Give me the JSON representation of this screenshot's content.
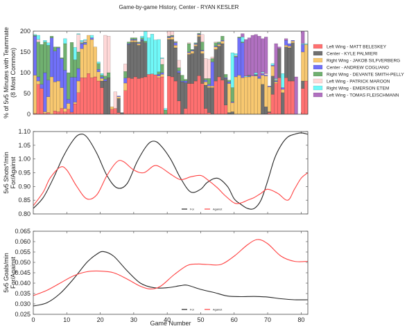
{
  "title": "Game-by-game History, Center - RYAN KESLER",
  "chart_data": [
    {
      "type": "bar",
      "stacked": true,
      "title": "",
      "xlabel": "",
      "ylabel": "% of 5v5 Minutes with Teammate\n(8 Most Common)",
      "ylim": [
        0,
        200
      ],
      "yticks": [
        "0",
        "50",
        "100",
        "150",
        "200"
      ],
      "xlim": [
        0,
        82
      ],
      "legend_position": "right",
      "x": [
        1,
        2,
        3,
        4,
        5,
        6,
        7,
        8,
        9,
        10,
        11,
        12,
        13,
        14,
        15,
        16,
        17,
        18,
        19,
        20,
        21,
        22,
        23,
        24,
        25,
        26,
        27,
        28,
        29,
        30,
        31,
        32,
        33,
        34,
        35,
        36,
        37,
        38,
        39,
        40,
        41,
        42,
        43,
        44,
        45,
        46,
        47,
        48,
        49,
        50,
        51,
        52,
        53,
        54,
        55,
        56,
        57,
        58,
        59,
        60,
        61,
        62,
        63,
        64,
        65,
        66,
        67,
        68,
        69,
        70,
        71,
        72,
        73,
        74,
        75,
        76,
        77,
        78,
        79,
        80,
        81,
        82
      ],
      "series": [
        {
          "name": "Left Wing - MATT BELESKEY",
          "color": "#ff7070",
          "values": [
            2,
            72,
            62,
            2,
            4,
            0,
            8,
            6,
            14,
            6,
            12,
            5,
            25,
            52,
            88,
            88,
            98,
            88,
            90,
            80,
            64,
            0,
            0,
            12,
            14,
            4,
            0,
            57,
            88,
            86,
            90,
            86,
            88,
            90,
            96,
            97,
            95,
            88,
            90,
            0,
            92,
            90,
            80,
            32,
            0,
            14,
            74,
            74,
            80,
            93,
            74,
            14,
            4,
            0,
            80,
            90,
            82,
            22,
            0,
            0,
            0,
            0,
            0,
            0,
            0,
            0,
            0,
            0,
            0,
            0,
            4,
            48,
            74,
            88,
            0,
            88,
            80,
            80,
            0,
            0,
            62,
            80
          ]
        },
        {
          "name": "Center - KYLE PALMIERI",
          "color": "#707070",
          "values": [
            0,
            0,
            0,
            0,
            0,
            0,
            0,
            0,
            0,
            0,
            0,
            0,
            0,
            0,
            0,
            0,
            0,
            0,
            0,
            0,
            16,
            80,
            88,
            0,
            0,
            34,
            4,
            0,
            80,
            88,
            84,
            80,
            90,
            82,
            0,
            0,
            0,
            0,
            0,
            0,
            88,
            90,
            80,
            68,
            78,
            62,
            70,
            72,
            84,
            94,
            72,
            56,
            60,
            64,
            76,
            74,
            88,
            64,
            4,
            6,
            0,
            0,
            0,
            0,
            0,
            0,
            0,
            0,
            72,
            18,
            2,
            44,
            0,
            70,
            52,
            74,
            80,
            92,
            0,
            0,
            18,
            0
          ]
        },
        {
          "name": "Right Wing - JAKOB SILFVERBERG",
          "color": "#f8c870",
          "values": [
            92,
            8,
            0,
            4,
            38,
            90,
            70,
            74,
            50,
            8,
            14,
            0,
            4,
            28,
            70,
            80,
            92,
            92,
            72,
            22,
            6,
            0,
            0,
            6,
            0,
            4,
            0,
            18,
            0,
            4,
            4,
            4,
            0,
            0,
            0,
            0,
            0,
            4,
            6,
            0,
            4,
            6,
            6,
            0,
            0,
            0,
            4,
            6,
            4,
            4,
            6,
            8,
            4,
            4,
            6,
            4,
            6,
            0,
            70,
            22,
            90,
            94,
            88,
            90,
            90,
            92,
            92,
            86,
            22,
            74,
            60,
            24,
            4,
            0,
            8,
            4,
            4,
            4,
            0,
            0,
            70,
            88
          ]
        },
        {
          "name": "Center - ANDREW COGLIANO",
          "color": "#7070f8",
          "values": [
            94,
            10,
            10,
            94,
            40,
            94,
            74,
            80,
            70,
            92,
            10,
            84,
            60,
            30,
            12,
            4,
            0,
            4,
            0,
            6,
            4,
            4,
            0,
            0,
            0,
            2,
            0,
            12,
            2,
            2,
            2,
            2,
            2,
            0,
            0,
            0,
            0,
            4,
            4,
            0,
            2,
            2,
            6,
            4,
            2,
            4,
            2,
            2,
            2,
            2,
            2,
            4,
            4,
            58,
            2,
            2,
            2,
            2,
            4,
            2,
            48,
            90,
            84,
            0,
            2,
            0,
            2,
            4,
            4,
            2,
            2,
            2,
            2,
            0,
            4,
            12,
            6,
            2,
            0,
            0,
            18,
            0
          ]
        },
        {
          "name": "Right Wing - DEVANTE SMITH-PELLY",
          "color": "#70b070",
          "values": [
            2,
            84,
            96,
            74,
            84,
            4,
            10,
            2,
            2,
            64,
            64,
            84,
            42,
            40,
            2,
            2,
            0,
            0,
            0,
            14,
            4,
            8,
            12,
            0,
            0,
            0,
            0,
            16,
            4,
            4,
            4,
            2,
            4,
            4,
            0,
            0,
            0,
            6,
            20,
            10,
            2,
            2,
            2,
            8,
            14,
            4,
            20,
            2,
            2,
            2,
            20,
            4,
            14,
            8,
            8,
            4,
            10,
            8,
            4,
            34,
            2,
            2,
            2,
            0,
            2,
            0,
            2,
            0,
            0,
            0,
            0,
            0,
            2,
            0,
            0,
            0,
            0,
            0,
            0,
            0,
            0,
            0
          ]
        },
        {
          "name": "Left Wing - PATRICK MAROON",
          "color": "#ffd8d8",
          "values": [
            0,
            6,
            0,
            0,
            0,
            0,
            0,
            0,
            0,
            0,
            0,
            0,
            0,
            42,
            2,
            4,
            0,
            0,
            0,
            0,
            0,
            98,
            88,
            0,
            40,
            0,
            0,
            18,
            0,
            0,
            0,
            0,
            0,
            0,
            0,
            0,
            0,
            0,
            14,
            0,
            12,
            10,
            2,
            18,
            0,
            0,
            2,
            0,
            0,
            0,
            18,
            48,
            46,
            4,
            2,
            0,
            0,
            0,
            0,
            0,
            2,
            0,
            0,
            0,
            0,
            0,
            0,
            0,
            2,
            4,
            0,
            0,
            2,
            0,
            0,
            0,
            0,
            0,
            0,
            0,
            0,
            0
          ]
        },
        {
          "name": "Right Wing - EMERSON ETEM",
          "color": "#70f8f8",
          "values": [
            2,
            10,
            0,
            4,
            6,
            0,
            0,
            0,
            0,
            12,
            0,
            0,
            30,
            2,
            4,
            2,
            0,
            6,
            0,
            4,
            4,
            0,
            0,
            0,
            0,
            0,
            0,
            0,
            0,
            0,
            0,
            0,
            4,
            84,
            88,
            96,
            84,
            78,
            2,
            4,
            0,
            0,
            0,
            0,
            0,
            0,
            0,
            0,
            0,
            0,
            0,
            0,
            0,
            0,
            0,
            0,
            0,
            0,
            0,
            84,
            4,
            0,
            12,
            2,
            0,
            0,
            4,
            0,
            2,
            0,
            0,
            4,
            2,
            0,
            34,
            0,
            0,
            0,
            0,
            0,
            2,
            2
          ]
        },
        {
          "name": "Left Wing - TOMAS FLEISCHMANN",
          "color": "#b070c0",
          "values": [
            0,
            0,
            0,
            0,
            0,
            0,
            0,
            0,
            0,
            0,
            0,
            0,
            0,
            0,
            0,
            0,
            0,
            0,
            0,
            0,
            0,
            0,
            0,
            0,
            0,
            0,
            0,
            0,
            0,
            0,
            0,
            0,
            0,
            0,
            0,
            0,
            0,
            0,
            0,
            0,
            0,
            0,
            0,
            0,
            0,
            0,
            0,
            0,
            0,
            0,
            0,
            0,
            0,
            0,
            0,
            0,
            0,
            0,
            0,
            0,
            0,
            0,
            8,
            88,
            90,
            98,
            92,
            98,
            80,
            88,
            0,
            0,
            84,
            4,
            0,
            4,
            0,
            0,
            90,
            0,
            66,
            0
          ]
        }
      ]
    },
    {
      "type": "line",
      "title": "",
      "xlabel": "",
      "ylabel": "5v5 Shots*/min\nFor/Against",
      "ylim": [
        0.8,
        1.1
      ],
      "yticks": [
        "0.80",
        "0.85",
        "0.90",
        "0.95",
        "1.00",
        "1.05",
        "1.10"
      ],
      "xlim": [
        0,
        82
      ],
      "legend_position": "lower-center-right",
      "series": [
        {
          "name": "For",
          "color": "#222222",
          "x": [
            0,
            3,
            6,
            9,
            12,
            14,
            16,
            19,
            22,
            25,
            28,
            31,
            34,
            36,
            38,
            41,
            44,
            47,
            50,
            52,
            55,
            58,
            60,
            62,
            64,
            66,
            68,
            70,
            72,
            74,
            76,
            78,
            80,
            82
          ],
          "y": [
            0.82,
            0.86,
            0.93,
            1.01,
            1.07,
            1.09,
            1.08,
            1.02,
            0.94,
            0.895,
            0.91,
            0.99,
            1.05,
            1.065,
            1.05,
            1.0,
            0.93,
            0.88,
            0.89,
            0.915,
            0.93,
            0.9,
            0.855,
            0.835,
            0.82,
            0.82,
            0.85,
            0.92,
            1.0,
            1.05,
            1.08,
            1.09,
            1.095,
            1.09
          ]
        },
        {
          "name": "Against",
          "color": "#ff4040",
          "x": [
            0,
            3,
            5,
            8,
            10,
            13,
            16,
            19,
            22,
            25,
            27,
            30,
            33,
            36,
            38,
            41,
            44,
            47,
            50,
            52,
            55,
            57,
            60,
            62,
            64,
            66,
            68,
            70,
            73,
            76,
            78,
            80,
            82
          ],
          "y": [
            0.83,
            0.88,
            0.93,
            0.97,
            0.96,
            0.9,
            0.855,
            0.87,
            0.94,
            0.99,
            0.99,
            0.96,
            0.95,
            0.975,
            0.97,
            0.945,
            0.925,
            0.935,
            0.94,
            0.925,
            0.895,
            0.87,
            0.84,
            0.84,
            0.85,
            0.86,
            0.875,
            0.89,
            0.875,
            0.85,
            0.89,
            0.93,
            0.95
          ]
        }
      ]
    },
    {
      "type": "line",
      "title": "",
      "xlabel": "Game Number",
      "ylabel": "5v5 Goals/min\nFor/Against",
      "ylim": [
        0.025,
        0.065
      ],
      "yticks": [
        "0.025",
        "0.030",
        "0.035",
        "0.040",
        "0.045",
        "0.050",
        "0.055",
        "0.060",
        "0.065"
      ],
      "xticks": [
        "0",
        "10",
        "20",
        "30",
        "40",
        "50",
        "60",
        "70",
        "80"
      ],
      "xlim": [
        0,
        82
      ],
      "legend_position": "lower-center-right",
      "series": [
        {
          "name": "For",
          "color": "#222222",
          "x": [
            0,
            4,
            8,
            12,
            16,
            19,
            21,
            24,
            28,
            32,
            36,
            40,
            44,
            46,
            50,
            54,
            58,
            62,
            66,
            70,
            74,
            78,
            82
          ],
          "y": [
            0.029,
            0.0305,
            0.035,
            0.042,
            0.05,
            0.054,
            0.0552,
            0.053,
            0.046,
            0.04,
            0.0378,
            0.0378,
            0.0388,
            0.039,
            0.037,
            0.0355,
            0.0338,
            0.0335,
            0.0336,
            0.0333,
            0.0325,
            0.032,
            0.032
          ]
        },
        {
          "name": "Against",
          "color": "#ff4040",
          "x": [
            0,
            4,
            8,
            12,
            16,
            20,
            24,
            28,
            32,
            35,
            38,
            42,
            46,
            49,
            52,
            56,
            60,
            64,
            67,
            70,
            74,
            78,
            82
          ],
          "y": [
            0.034,
            0.0365,
            0.04,
            0.0435,
            0.0455,
            0.0458,
            0.045,
            0.042,
            0.0385,
            0.0372,
            0.0385,
            0.044,
            0.0485,
            0.0492,
            0.049,
            0.049,
            0.053,
            0.0585,
            0.061,
            0.059,
            0.053,
            0.0505,
            0.0505
          ]
        }
      ]
    }
  ]
}
